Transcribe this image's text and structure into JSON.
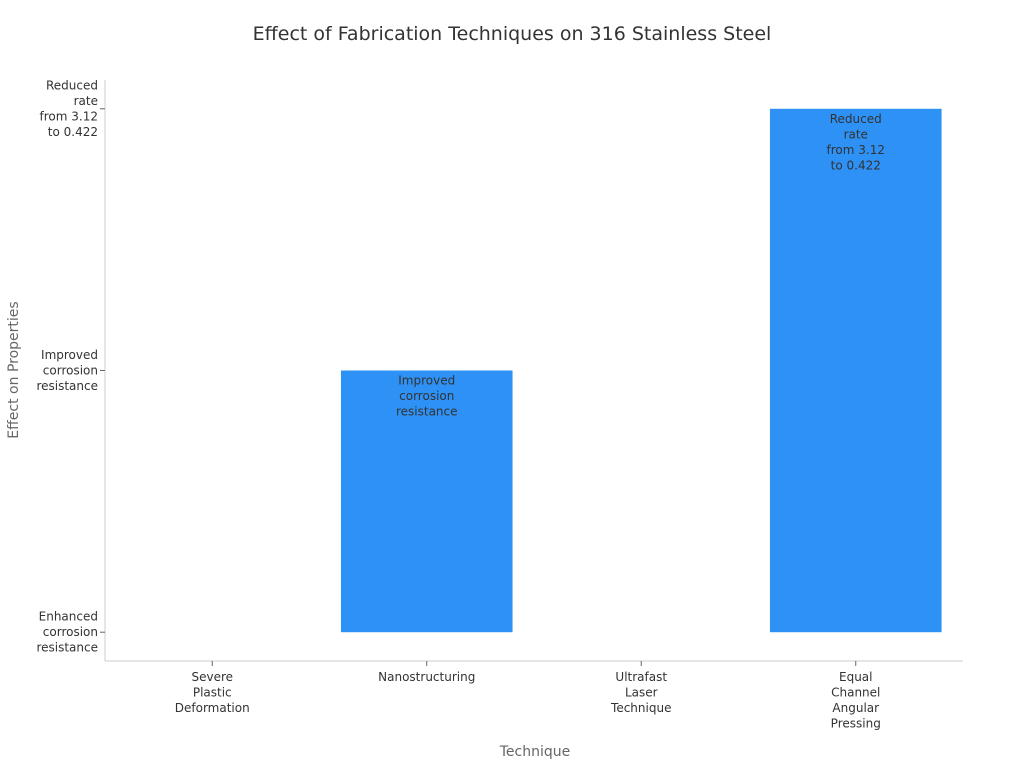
{
  "chart_data": {
    "type": "bar",
    "title": "Effect of Fabrication Techniques on 316 Stainless Steel",
    "x_label": "Technique",
    "y_label": "Effect on Properties",
    "categories": [
      "Severe\nPlastic\nDeformation",
      "Nanostructuring",
      "Ultrafast\nLaser\nTechnique",
      "Equal\nChannel\nAngular\nPressing"
    ],
    "values": [
      0,
      1,
      0,
      2
    ],
    "value_labels": [
      null,
      "Improved\ncorrosion\nresistance",
      null,
      "Reduced\nrate\nfrom 3.12\nto 0.422"
    ],
    "color": "#2e91f5",
    "ylim": [
      -0.11,
      2.11
    ],
    "yticks": [
      {
        "value": 0,
        "label": "Enhanced\ncorrosion\nresistance"
      },
      {
        "value": 1,
        "label": "Improved\ncorrosion\nresistance"
      },
      {
        "value": 2,
        "label": "Reduced\nrate\nfrom 3.12\nto 0.422"
      }
    ],
    "grid": false
  }
}
